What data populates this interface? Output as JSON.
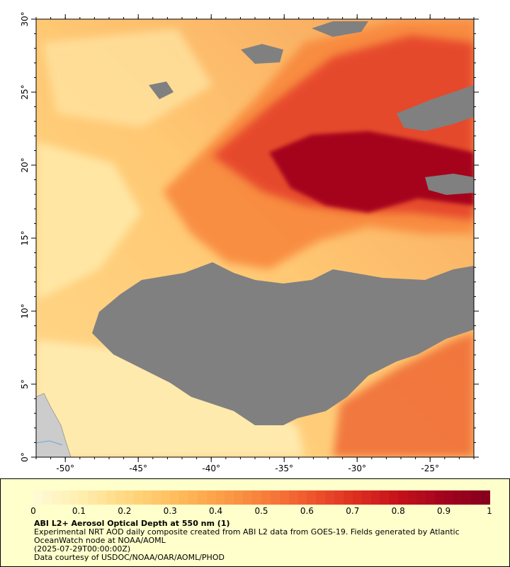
{
  "map": {
    "lat_labels": [
      "30°",
      "25°",
      "20°",
      "15°",
      "10°",
      "5°",
      "0°"
    ],
    "lat_values": [
      30,
      25,
      20,
      15,
      10,
      5,
      0
    ],
    "lon_labels": [
      "-50°",
      "-45°",
      "-40°",
      "-35°",
      "-30°",
      "-25°"
    ],
    "lon_values": [
      -50,
      -45,
      -40,
      -35,
      -30,
      -25
    ],
    "extent": {
      "lon_min": -52,
      "lon_max": -22,
      "lat_min": 0,
      "lat_max": 30
    },
    "colors": {
      "no_data": "#808080",
      "land": "#cccccc"
    }
  },
  "colorbar": {
    "labels": [
      "0",
      "0.1",
      "0.2",
      "0.3",
      "0.4",
      "0.5",
      "0.6",
      "0.7",
      "0.8",
      "0.9",
      "1"
    ],
    "min": 0,
    "max": 1,
    "stops": [
      "#fffbd8",
      "#ffefb0",
      "#ffd983",
      "#ffc060",
      "#fca24a",
      "#f8813c",
      "#f05a2f",
      "#de3022",
      "#c6121b",
      "#a2031e",
      "#85001e"
    ]
  },
  "legend": {
    "title": "ABI L2+ Aerosol Optical Depth at 550 nm (1)",
    "description": "Experimental NRT AOD daily composite created from ABI L2 data from GOES-19. Fields generated by Atlantic OceanWatch node at NOAA/AOML",
    "date": "(2025-07-29T00:00:00Z)",
    "credit": "Data courtesy of USDOC/NOAA/OAR/AOML/PHOD"
  }
}
